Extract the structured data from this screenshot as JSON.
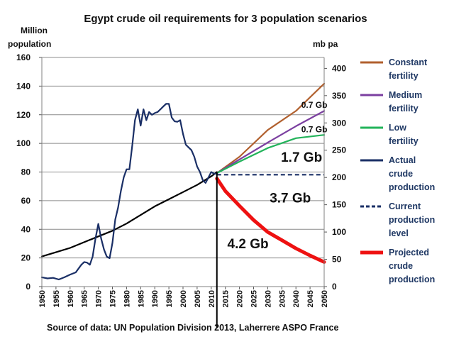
{
  "chart_data": {
    "type": "line",
    "title": "Egypt crude oil requirements for 3 population scenarios",
    "y_left_label_lines": [
      "Million",
      "population"
    ],
    "y_right_label": "mb pa",
    "source": "Source of data: UN Population Division 2013, Laherrere ASPO France",
    "x_range": [
      1950,
      2050
    ],
    "y_left_range": [
      0,
      160
    ],
    "y_right_range": [
      0,
      420
    ],
    "x_ticks": [
      "1950",
      "1955",
      "1960",
      "1965",
      "1970",
      "1975",
      "1980",
      "1985",
      "1990",
      "1995",
      "2000",
      "2005",
      "2010",
      "2015",
      "2020",
      "2025",
      "2030",
      "2035",
      "2040",
      "2045",
      "2050"
    ],
    "y_left_ticks": [
      "0",
      "20",
      "40",
      "60",
      "80",
      "100",
      "120",
      "140",
      "160"
    ],
    "y_right_ticks": [
      "0",
      "50",
      "100",
      "150",
      "200",
      "250",
      "300",
      "350",
      "400"
    ],
    "grid": "horizontal",
    "legend_position": "right",
    "series": [
      {
        "name": "Population",
        "axis": "left",
        "color": "#000000",
        "width": 2.2,
        "dash": "",
        "x": [
          1950,
          1955,
          1960,
          1965,
          1970,
          1975,
          1980,
          1985,
          1990,
          1995,
          2000,
          2005,
          2010,
          2012
        ],
        "y": [
          21,
          24,
          27,
          31,
          35,
          39,
          44,
          50,
          56,
          61,
          66,
          71,
          77,
          80
        ]
      },
      {
        "name": "Constant fertility",
        "legend": [
          "Constant",
          "fertility"
        ],
        "axis": "right",
        "color": "#b1602e",
        "width": 2.2,
        "dash": "",
        "x": [
          2012,
          2020,
          2030,
          2040,
          2050
        ],
        "y": [
          208,
          238,
          287,
          322,
          372
        ]
      },
      {
        "name": "Medium fertility",
        "legend": [
          "Medium",
          "fertility"
        ],
        "axis": "right",
        "color": "#7b3fa0",
        "width": 2.2,
        "dash": "",
        "x": [
          2012,
          2020,
          2030,
          2040,
          2050
        ],
        "y": [
          208,
          233,
          264,
          294,
          322
        ]
      },
      {
        "name": "Low fertility",
        "legend": [
          "Low",
          "fertility"
        ],
        "axis": "right",
        "color": "#22b35a",
        "width": 2.2,
        "dash": "",
        "x": [
          2012,
          2020,
          2030,
          2040,
          2050
        ],
        "y": [
          208,
          229,
          254,
          272,
          278
        ]
      },
      {
        "name": "Actual crude production",
        "legend": [
          "Actual",
          "crude",
          "production"
        ],
        "axis": "right",
        "color": "#1a2f66",
        "width": 2.2,
        "dash": "",
        "x": [
          1950,
          1952,
          1954,
          1956,
          1958,
          1960,
          1962,
          1964,
          1965,
          1966,
          1967,
          1968,
          1969,
          1970,
          1971,
          1972,
          1973,
          1974,
          1975,
          1976,
          1977,
          1978,
          1979,
          1980,
          1981,
          1982,
          1983,
          1984,
          1985,
          1986,
          1987,
          1988,
          1989,
          1990,
          1991,
          1992,
          1993,
          1994,
          1995,
          1996,
          1997,
          1998,
          1999,
          2000,
          2001,
          2002,
          2003,
          2004,
          2005,
          2006,
          2007,
          2008,
          2009,
          2010,
          2011,
          2012
        ],
        "y": [
          17,
          15,
          16,
          13,
          17,
          22,
          26,
          40,
          45,
          44,
          40,
          55,
          88,
          115,
          88,
          68,
          55,
          52,
          80,
          123,
          145,
          175,
          200,
          215,
          215,
          258,
          305,
          325,
          295,
          325,
          305,
          320,
          315,
          318,
          320,
          325,
          330,
          335,
          335,
          310,
          303,
          302,
          305,
          280,
          260,
          255,
          250,
          238,
          220,
          210,
          195,
          190,
          200,
          210,
          207,
          207
        ]
      },
      {
        "name": "Current production level",
        "legend": [
          "Current",
          "production",
          "level"
        ],
        "axis": "right",
        "color": "#1a2f66",
        "width": 2.2,
        "dash": "6,4",
        "x": [
          2012,
          2050
        ],
        "y": [
          205,
          205
        ]
      },
      {
        "name": "Projected crude production",
        "legend": [
          "Projected",
          "crude",
          "production"
        ],
        "axis": "right",
        "color": "#ee1111",
        "width": 5,
        "dash": "",
        "x": [
          2012,
          2015,
          2020,
          2025,
          2030,
          2035,
          2040,
          2045,
          2050
        ],
        "y": [
          198,
          175,
          148,
          122,
          100,
          85,
          70,
          57,
          45
        ]
      }
    ],
    "annotations": [
      {
        "text": "0.7 Gb",
        "x": 2046.5,
        "y_right": 328,
        "size": "small"
      },
      {
        "text": "0.7 Gb",
        "x": 2046.5,
        "y_right": 283,
        "size": "small"
      },
      {
        "text": "1.7 Gb",
        "x": 2042,
        "y_right": 229,
        "size": "big"
      },
      {
        "text": "3.7 Gb",
        "x": 2038,
        "y_right": 154,
        "size": "big"
      },
      {
        "text": "4.2 Gb",
        "x": 2023,
        "y_right": 70,
        "size": "big"
      }
    ],
    "vertical_marker": {
      "x": 2012,
      "y_left": 80
    }
  }
}
